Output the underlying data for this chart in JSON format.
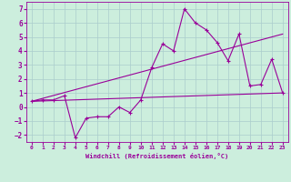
{
  "xlabel": "Windchill (Refroidissement éolien,°C)",
  "background_color": "#cceedd",
  "grid_color": "#aacccc",
  "line_color": "#990099",
  "xlim": [
    -0.5,
    23.5
  ],
  "ylim": [
    -2.5,
    7.5
  ],
  "xticks": [
    0,
    1,
    2,
    3,
    4,
    5,
    6,
    7,
    8,
    9,
    10,
    11,
    12,
    13,
    14,
    15,
    16,
    17,
    18,
    19,
    20,
    21,
    22,
    23
  ],
  "yticks": [
    -2,
    -1,
    0,
    1,
    2,
    3,
    4,
    5,
    6,
    7
  ],
  "series0_x": [
    0,
    1,
    2,
    3,
    4,
    5,
    6,
    7,
    8,
    9,
    10,
    11,
    12,
    13,
    14,
    15,
    16,
    17,
    18,
    19,
    20,
    21,
    22,
    23
  ],
  "series0_y": [
    0.4,
    0.5,
    0.5,
    0.8,
    -2.2,
    -0.8,
    -0.7,
    -0.7,
    0.0,
    -0.4,
    0.5,
    2.8,
    4.5,
    4.0,
    7.0,
    6.0,
    5.5,
    4.6,
    3.3,
    5.2,
    1.5,
    1.6,
    3.4,
    1.0
  ],
  "series1_x": [
    0,
    23
  ],
  "series1_y": [
    0.4,
    1.0
  ],
  "series2_x": [
    0,
    23
  ],
  "series2_y": [
    0.4,
    5.2
  ]
}
